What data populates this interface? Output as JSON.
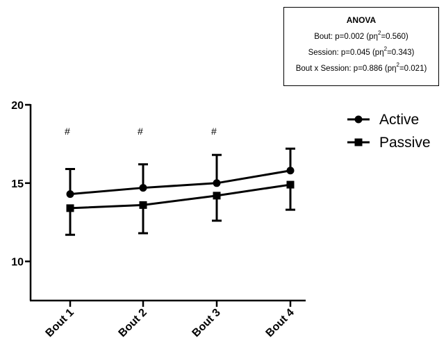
{
  "anova": {
    "title": "ANOVA",
    "lines": [
      {
        "prefix": "Bout: p=0.002 (pη",
        "sup": "2",
        "suffix": "=0.560)"
      },
      {
        "prefix": "Session: p=0.045 (pη",
        "sup": "2",
        "suffix": "=0.343)"
      },
      {
        "prefix": "Bout x Session: p=0.886 (pη",
        "sup": "2",
        "suffix": "=0.021)"
      }
    ]
  },
  "chart_data": {
    "type": "line",
    "categories": [
      "Bout 1",
      "Bout 2",
      "Bout 3",
      "Bout 4"
    ],
    "ylim": [
      7.5,
      20
    ],
    "yticks": [
      10,
      15,
      20
    ],
    "grid": false,
    "legend_position": "right",
    "series": [
      {
        "name": "Active",
        "marker": "circle",
        "values": [
          14.3,
          14.7,
          15.0,
          15.8
        ],
        "err_upper": [
          15.9,
          16.2,
          16.8,
          17.2
        ]
      },
      {
        "name": "Passive",
        "marker": "square",
        "values": [
          13.4,
          13.6,
          14.2,
          14.9
        ],
        "err_lower": [
          11.7,
          11.8,
          12.6,
          13.3
        ]
      }
    ],
    "annotations": [
      {
        "text": "#",
        "category": "Bout 1"
      },
      {
        "text": "#",
        "category": "Bout 2"
      },
      {
        "text": "#",
        "category": "Bout 3"
      }
    ]
  }
}
